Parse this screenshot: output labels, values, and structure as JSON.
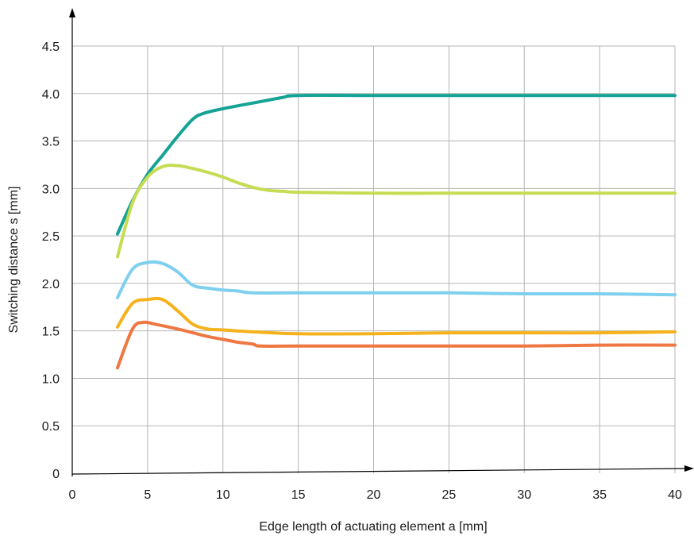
{
  "chart_data": {
    "type": "line",
    "title": "",
    "xlabel": "Edge length of actuating element a [mm]",
    "ylabel": "Switching distance s [mm]",
    "xlim": [
      0,
      40
    ],
    "ylim": [
      0,
      4.5
    ],
    "x_ticks": [
      0,
      5,
      10,
      15,
      20,
      25,
      30,
      35,
      40
    ],
    "x_tick_labels": [
      "0",
      "5",
      "10",
      "15",
      "20",
      "25",
      "30",
      "35",
      "40"
    ],
    "y_ticks": [
      0,
      0.5,
      1.0,
      1.5,
      2.0,
      2.5,
      3.0,
      3.5,
      4.0,
      4.5
    ],
    "y_tick_labels": [
      "0",
      "0.5",
      "1.0",
      "1.5",
      "2.0",
      "2.5",
      "3.0",
      "3.5",
      "4.0",
      "4.5"
    ],
    "grid": true,
    "series": [
      {
        "color": "#14a394",
        "x": [
          3,
          4,
          5,
          6,
          7,
          8,
          8.7,
          10,
          12,
          13,
          14,
          15,
          20,
          25,
          30,
          35,
          40
        ],
        "y": [
          2.52,
          2.87,
          3.15,
          3.35,
          3.55,
          3.73,
          3.79,
          3.84,
          3.9,
          3.93,
          3.96,
          3.98,
          3.98,
          3.98,
          3.98,
          3.98,
          3.98
        ]
      },
      {
        "color": "#c5dc53",
        "x": [
          3,
          4,
          5,
          6,
          7,
          8,
          9,
          10,
          11,
          12,
          13,
          14,
          15,
          20,
          25,
          30,
          35,
          40
        ],
        "y": [
          2.28,
          2.85,
          3.12,
          3.23,
          3.24,
          3.21,
          3.17,
          3.12,
          3.06,
          3.01,
          2.98,
          2.97,
          2.96,
          2.95,
          2.95,
          2.95,
          2.95,
          2.95
        ]
      },
      {
        "color": "#7fcfee",
        "x": [
          3,
          4,
          5,
          6,
          7,
          8,
          9,
          10,
          11,
          12,
          15,
          20,
          25,
          30,
          35,
          40
        ],
        "y": [
          1.85,
          2.15,
          2.22,
          2.21,
          2.12,
          1.98,
          1.95,
          1.93,
          1.92,
          1.9,
          1.9,
          1.9,
          1.9,
          1.89,
          1.89,
          1.88
        ]
      },
      {
        "color": "#f6b21c",
        "x": [
          3,
          4,
          5,
          6,
          7,
          8,
          9,
          10,
          12,
          15,
          20,
          25,
          30,
          35,
          40
        ],
        "y": [
          1.54,
          1.79,
          1.83,
          1.83,
          1.71,
          1.57,
          1.52,
          1.51,
          1.49,
          1.47,
          1.47,
          1.48,
          1.48,
          1.48,
          1.49
        ]
      },
      {
        "color": "#ee7742",
        "x": [
          3,
          4,
          4.7,
          5.5,
          7,
          8,
          9,
          10,
          11,
          12,
          12.5,
          15,
          20,
          25,
          30,
          35,
          40
        ],
        "y": [
          1.11,
          1.52,
          1.59,
          1.57,
          1.52,
          1.48,
          1.44,
          1.41,
          1.38,
          1.36,
          1.34,
          1.34,
          1.34,
          1.34,
          1.34,
          1.35,
          1.35
        ]
      }
    ]
  }
}
